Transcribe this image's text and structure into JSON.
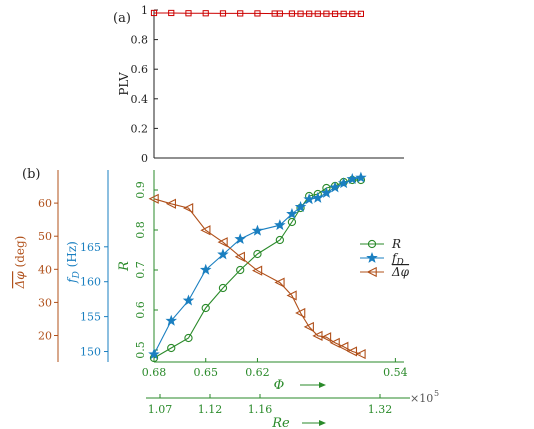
{
  "chart_data": [
    {
      "panel_label": "(a)",
      "type": "line",
      "ylabel": "PLV",
      "ylim": [
        0,
        1
      ],
      "yticks": [
        "0",
        "0.2",
        "0.4",
        "0.6",
        "0.8",
        "1"
      ],
      "grid": false,
      "color": "#cc0000",
      "marker": "square",
      "x": [
        0.68,
        0.67,
        0.66,
        0.65,
        0.64,
        0.63,
        0.62,
        0.61,
        0.607,
        0.6,
        0.595,
        0.59,
        0.585,
        0.58,
        0.575,
        0.57,
        0.565,
        0.56
      ],
      "values": [
        0.98,
        0.98,
        0.978,
        0.978,
        0.977,
        0.977,
        0.977,
        0.976,
        0.976,
        0.976,
        0.975,
        0.975,
        0.975,
        0.975,
        0.974,
        0.974,
        0.974,
        0.974
      ]
    },
    {
      "panel_label": "(b)",
      "type": "line",
      "xlabel": "Φ",
      "xlim": [
        0.68,
        0.535
      ],
      "xticks": [
        "0.68",
        "0.65",
        "0.62",
        "0.54"
      ],
      "xlabel2": "Re",
      "x2ticks": [
        "1.07",
        "1.12",
        "1.16",
        "1.32"
      ],
      "x2_multiplier": "×10",
      "x2_exponent": "5",
      "grid": false,
      "legend_position": "right",
      "x": [
        0.68,
        0.67,
        0.66,
        0.65,
        0.64,
        0.63,
        0.62,
        0.607,
        0.6,
        0.595,
        0.59,
        0.585,
        0.58,
        0.575,
        0.57,
        0.565,
        0.56
      ],
      "series": [
        {
          "name": "R",
          "axis": "R",
          "color": "#2a8a2a",
          "marker": "circle",
          "values": [
            0.48,
            0.505,
            0.53,
            0.605,
            0.655,
            0.7,
            0.74,
            0.775,
            0.82,
            0.855,
            0.885,
            0.89,
            0.905,
            0.91,
            0.92,
            0.925,
            0.925
          ]
        },
        {
          "name": "f_D",
          "axis": "fD",
          "color": "#1a7fc0",
          "marker": "star",
          "values": [
            149.6,
            154.4,
            157.3,
            161.7,
            163.9,
            166.1,
            167.3,
            168.1,
            169.7,
            170.7,
            171.8,
            172.0,
            172.7,
            173.5,
            174.1,
            174.7,
            174.9
          ]
        },
        {
          "name": "Δφ",
          "axis": "phi",
          "color": "#b0501a",
          "marker": "triangle-left",
          "values": [
            61.3,
            59.8,
            58.5,
            51.8,
            48.2,
            43.8,
            39.6,
            36.0,
            32.1,
            26.8,
            22.6,
            19.9,
            19.5,
            17.8,
            16.6,
            15.2,
            14.4
          ]
        }
      ],
      "axes": {
        "R": {
          "label": "R",
          "ylim": [
            0.47,
            0.95
          ],
          "ticks": [
            "0.5",
            "0.6",
            "0.7",
            "0.8",
            "0.9"
          ],
          "color": "#2a8a2a"
        },
        "fD": {
          "label_main": "f",
          "label_sub": "D",
          "label_unit": "(Hz)",
          "ylim": [
            148.5,
            176
          ],
          "ticks": [
            "150",
            "155",
            "160",
            "165"
          ],
          "color": "#1a7fc0"
        },
        "phi": {
          "label_main": "Δφ",
          "label_unit": "(deg)",
          "ylim": [
            12,
            70
          ],
          "ticks": [
            "20",
            "30",
            "40",
            "50",
            "60"
          ],
          "color": "#b0501a"
        }
      },
      "legend": [
        {
          "label": "R",
          "color": "#2a8a2a",
          "marker": "circle"
        },
        {
          "label": "f",
          "sub": "D",
          "color": "#1a7fc0",
          "marker": "star"
        },
        {
          "label": "Δφ",
          "color": "#b0501a",
          "marker": "triangle-left"
        }
      ]
    }
  ]
}
